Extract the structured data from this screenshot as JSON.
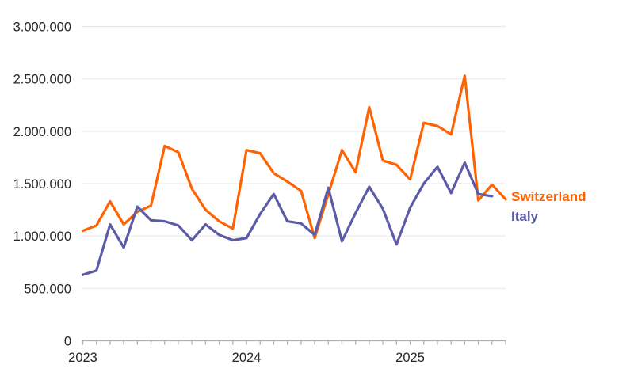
{
  "chart_data": {
    "type": "line",
    "title": "",
    "x_year_labels": [
      {
        "label": "2023",
        "month_index": 0
      },
      {
        "label": "2024",
        "month_index": 12
      },
      {
        "label": "2025",
        "month_index": 24
      }
    ],
    "months": [
      "2023-01",
      "2023-02",
      "2023-03",
      "2023-04",
      "2023-05",
      "2023-06",
      "2023-07",
      "2023-08",
      "2023-09",
      "2023-10",
      "2023-11",
      "2023-12",
      "2024-01",
      "2024-02",
      "2024-03",
      "2024-04",
      "2024-05",
      "2024-06",
      "2024-07",
      "2024-08",
      "2024-09",
      "2024-10",
      "2024-11",
      "2024-12",
      "2025-01",
      "2025-02",
      "2025-03",
      "2025-04",
      "2025-05",
      "2025-06",
      "2025-07",
      "2025-08"
    ],
    "y_axis": {
      "min": 0,
      "max": 3000000,
      "grid": true,
      "tick_values": [
        0,
        500000,
        1000000,
        1500000,
        2000000,
        2500000,
        3000000
      ],
      "tick_labels": [
        "0",
        "500.000",
        "1.000.000",
        "1.500.000",
        "2.000.000",
        "2.500.000",
        "3.000.000"
      ]
    },
    "series": [
      {
        "name": "Switzerland",
        "color": "#ff6200",
        "values": [
          1050000,
          1100000,
          1330000,
          1110000,
          1230000,
          1290000,
          1860000,
          1800000,
          1450000,
          1250000,
          1140000,
          1070000,
          1820000,
          1790000,
          1600000,
          1520000,
          1430000,
          980000,
          1400000,
          1820000,
          1610000,
          2230000,
          1720000,
          1680000,
          1540000,
          2080000,
          2050000,
          1970000,
          2530000,
          1340000,
          1490000,
          1350000
        ]
      },
      {
        "name": "Italy",
        "color": "#5b5ba6",
        "values": [
          630000,
          670000,
          1110000,
          890000,
          1280000,
          1150000,
          1140000,
          1100000,
          960000,
          1110000,
          1010000,
          960000,
          980000,
          1210000,
          1400000,
          1140000,
          1120000,
          1010000,
          1460000,
          950000,
          1220000,
          1470000,
          1260000,
          920000,
          1270000,
          1500000,
          1660000,
          1410000,
          1700000,
          1400000,
          1380000
        ]
      }
    ],
    "legend_position": "end-of-line-right"
  },
  "colors": {
    "grid": "#e9e9e9",
    "axis": "#b0b0b0",
    "text": "#262626",
    "background": "#ffffff"
  }
}
